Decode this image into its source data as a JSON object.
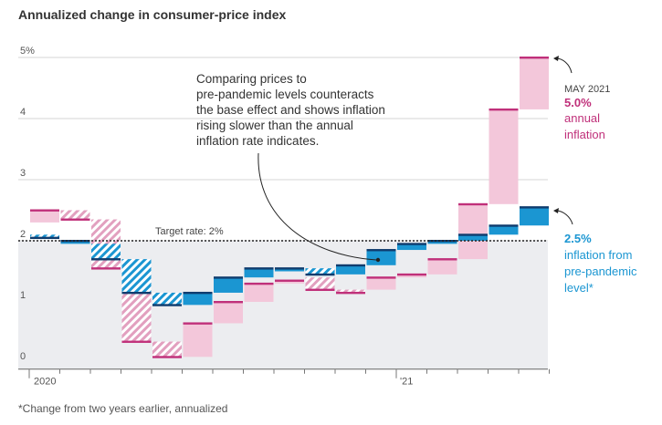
{
  "title": "Annualized change in consumer-price index",
  "footnote": "*Change from two years earlier, annualized",
  "colors": {
    "pink_fill": "#f3c7da",
    "pink_line": "#c0307a",
    "blue_fill": "#1b96d2",
    "blue_line": "#0f3c6e",
    "plot_bg": "#ecedf0",
    "target_line": "#222222"
  },
  "chart_data": {
    "type": "bar",
    "description": "Paired range bars per month: annual inflation (pink) and two-year annualized inflation (blue); bar spans from 2019 base to current value. Hatched bars indicate decreasing values.",
    "x_ticks": [
      "2020",
      "'21"
    ],
    "y_ticks": [
      "0",
      "1",
      "2",
      "3",
      "4",
      "5%"
    ],
    "ylim": [
      -0.1,
      5.05
    ],
    "target": {
      "label": "Target rate: 2%",
      "value": 2.0
    },
    "months": [
      {
        "annual": [
          2.3,
          2.5
        ],
        "pandemic": [
          2.05,
          2.1
        ],
        "annual_down": false,
        "pandemic_down": true
      },
      {
        "annual": [
          2.35,
          2.5
        ],
        "pandemic": [
          1.95,
          2.0
        ],
        "annual_down": true,
        "pandemic_down": false
      },
      {
        "annual": [
          1.55,
          2.35
        ],
        "pandemic": [
          1.7,
          1.95
        ],
        "annual_down": true,
        "pandemic_down": true
      },
      {
        "annual": [
          0.35,
          1.15
        ],
        "pandemic": [
          1.15,
          1.7
        ],
        "annual_down": true,
        "pandemic_down": true
      },
      {
        "annual": [
          0.1,
          0.35
        ],
        "pandemic": [
          0.95,
          1.15
        ],
        "annual_down": true,
        "pandemic_down": true
      },
      {
        "annual": [
          0.1,
          0.65
        ],
        "pandemic": [
          0.95,
          1.15
        ],
        "annual_down": false,
        "pandemic_down": false
      },
      {
        "annual": [
          0.65,
          1.0
        ],
        "pandemic": [
          1.15,
          1.4
        ],
        "annual_down": false,
        "pandemic_down": false
      },
      {
        "annual": [
          1.0,
          1.3
        ],
        "pandemic": [
          1.4,
          1.55
        ],
        "annual_down": false,
        "pandemic_down": false
      },
      {
        "annual": [
          1.3,
          1.35
        ],
        "pandemic": [
          1.5,
          1.55
        ],
        "annual_down": false,
        "pandemic_down": false
      },
      {
        "annual": [
          1.2,
          1.4
        ],
        "pandemic": [
          1.45,
          1.55
        ],
        "annual_down": true,
        "pandemic_down": true
      },
      {
        "annual": [
          1.15,
          1.2
        ],
        "pandemic": [
          1.45,
          1.6
        ],
        "annual_down": true,
        "pandemic_down": false
      },
      {
        "annual": [
          1.2,
          1.4
        ],
        "pandemic": [
          1.6,
          1.85
        ],
        "annual_down": false,
        "pandemic_down": false
      },
      {
        "annual": [
          1.4,
          1.45
        ],
        "pandemic": [
          1.85,
          1.95
        ],
        "annual_down": false,
        "pandemic_down": false
      },
      {
        "annual": [
          1.45,
          1.7
        ],
        "pandemic": [
          1.95,
          2.0
        ],
        "annual_down": false,
        "pandemic_down": false
      },
      {
        "annual": [
          1.7,
          2.6
        ],
        "pandemic": [
          2.0,
          2.1
        ],
        "annual_down": false,
        "pandemic_down": false
      },
      {
        "annual": [
          2.6,
          4.15
        ],
        "pandemic": [
          2.1,
          2.25
        ],
        "annual_down": false,
        "pandemic_down": false
      },
      {
        "annual": [
          4.15,
          5.0
        ],
        "pandemic": [
          2.25,
          2.55
        ],
        "annual_down": false,
        "pandemic_down": false
      }
    ]
  },
  "annotation": {
    "lines": [
      "Comparing prices to",
      "pre-pandemic levels counteracts",
      "the base effect and shows inflation",
      "rising slower than the annual",
      "inflation rate indicates."
    ]
  },
  "right_labels": {
    "may": "MAY 2021",
    "annual_value": "5.0%",
    "annual_text_1": "annual",
    "annual_text_2": "inflation",
    "pandemic_value": "2.5%",
    "pandemic_text_1": "inflation from",
    "pandemic_text_2": "pre-pandemic",
    "pandemic_text_3": "level*"
  }
}
